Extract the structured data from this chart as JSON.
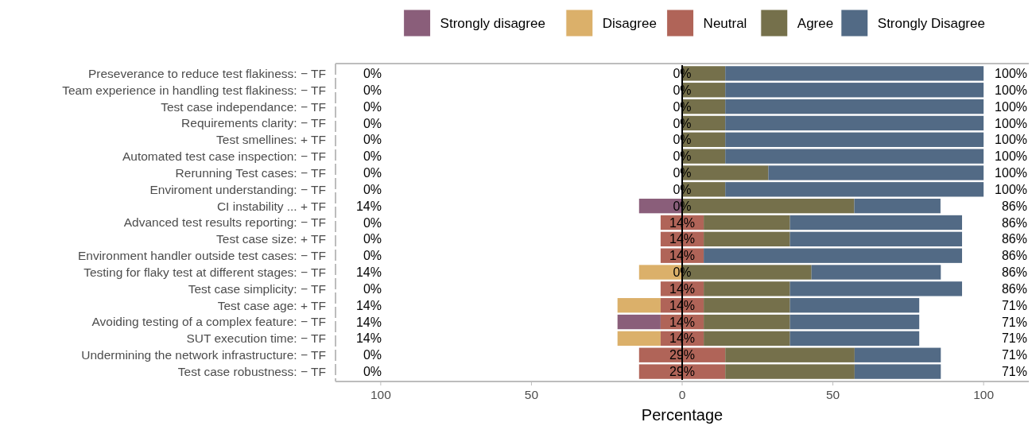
{
  "chart_data": {
    "type": "bar",
    "orientation": "horizontal",
    "xlabel": "Percentage",
    "categories": [
      "Preseverance to reduce test flakiness: − TF",
      "Team experience in handling test flakiness: − TF",
      "Test case independance: − TF",
      "Requirements clarity: − TF",
      "Test smellines: + TF",
      "Automated test case inspection: − TF",
      "Rerunning Test cases: − TF",
      "Enviroment understanding: − TF",
      "CI instability ... + TF",
      "Advanced test results reporting: − TF",
      "Test case size: + TF",
      "Environment handler outside test cases: − TF",
      "Testing for flaky test at different stages: − TF",
      "Test case simplicity: − TF",
      "Test case age: + TF",
      "Avoiding testing of a complex feature: − TF",
      "SUT execution time: − TF",
      "Undermining the network infrastructure: − TF",
      "Test case robustness: − TF"
    ],
    "series": [
      {
        "name": "Strongly disagree",
        "color": "#8a5e7a",
        "values": [
          0,
          0,
          0,
          0,
          0,
          0,
          0,
          0,
          14.3,
          0,
          0,
          0,
          0,
          0,
          0,
          14.3,
          0,
          0,
          0
        ],
        "base": [
          null,
          null,
          null,
          null,
          null,
          null,
          null,
          null,
          -14.3,
          null,
          null,
          null,
          null,
          null,
          null,
          -21.45,
          null,
          null,
          null
        ]
      },
      {
        "name": "Disagree",
        "color": "#dbb06a",
        "values": [
          0,
          0,
          0,
          0,
          0,
          0,
          0,
          0,
          0,
          0,
          0,
          0,
          14.3,
          0,
          14.3,
          0,
          14.3,
          0,
          0
        ],
        "base": [
          null,
          null,
          null,
          null,
          null,
          null,
          null,
          null,
          null,
          null,
          null,
          null,
          -14.3,
          null,
          -21.45,
          null,
          -21.45,
          null,
          null
        ]
      },
      {
        "name": "Neutral",
        "color": "#b06458",
        "values": [
          0,
          0,
          0,
          0,
          0,
          0,
          0,
          0,
          0,
          14.3,
          14.3,
          14.3,
          0,
          14.3,
          14.3,
          14.3,
          14.3,
          28.6,
          28.6
        ],
        "base": [
          null,
          null,
          null,
          null,
          null,
          null,
          null,
          null,
          null,
          -7.15,
          -7.15,
          -7.15,
          null,
          -7.15,
          -7.15,
          -7.15,
          -7.15,
          -14.3,
          -14.3
        ],
        "value_labels": [
          "0%",
          "0%",
          "0%",
          "0%",
          "0%",
          "0%",
          "0%",
          "0%",
          "0%",
          "14%",
          "14%",
          "14%",
          "0%",
          "14%",
          "14%",
          "14%",
          "14%",
          "29%",
          "29%"
        ]
      },
      {
        "name": "Agree",
        "color": "#75704b",
        "values": [
          14.3,
          14.3,
          14.3,
          14.3,
          14.3,
          14.3,
          28.6,
          14.3,
          57.1,
          28.6,
          28.6,
          0,
          42.9,
          28.6,
          28.6,
          28.6,
          28.6,
          42.9,
          42.9
        ],
        "base": [
          0,
          0,
          0,
          0,
          0,
          0,
          0,
          0,
          0,
          7.15,
          7.15,
          null,
          0,
          7.15,
          7.15,
          7.15,
          7.15,
          14.3,
          14.3
        ]
      },
      {
        "name": "Strongly Disagree",
        "color": "#526a85",
        "values": [
          85.7,
          85.7,
          85.7,
          85.7,
          85.7,
          85.7,
          71.4,
          85.7,
          28.6,
          57.1,
          57.1,
          85.7,
          42.9,
          57.1,
          42.9,
          42.9,
          42.9,
          28.6,
          28.6
        ],
        "base": [
          14.3,
          14.3,
          14.3,
          14.3,
          14.3,
          14.3,
          28.6,
          14.3,
          57.1,
          35.75,
          35.75,
          7.15,
          42.9,
          35.75,
          35.75,
          35.75,
          35.75,
          57.2,
          57.2
        ]
      }
    ],
    "xlim": [
      -115,
      115
    ],
    "xticks": [
      {
        "value": -100,
        "label": "100"
      },
      {
        "value": -50,
        "label": "50"
      },
      0,
      50,
      100
    ],
    "ref_lines": [
      {
        "axis": "x",
        "value": 0,
        "color": "#000000"
      }
    ],
    "annotations": [
      "0%",
      "0%",
      "0%",
      "0%",
      "0%",
      "0%",
      "0%",
      "0%",
      "14%",
      "0%",
      "0%",
      "0%",
      "14%",
      "0%",
      "14%",
      "14%",
      "14%",
      "0%",
      "0%",
      "100%",
      "100%",
      "100%",
      "100%",
      "100%",
      "100%",
      "100%",
      "100%",
      "86%",
      "86%",
      "86%",
      "86%",
      "86%",
      "86%",
      "71%",
      "71%",
      "71%",
      "71%",
      "71%"
    ],
    "legend": "top right"
  }
}
